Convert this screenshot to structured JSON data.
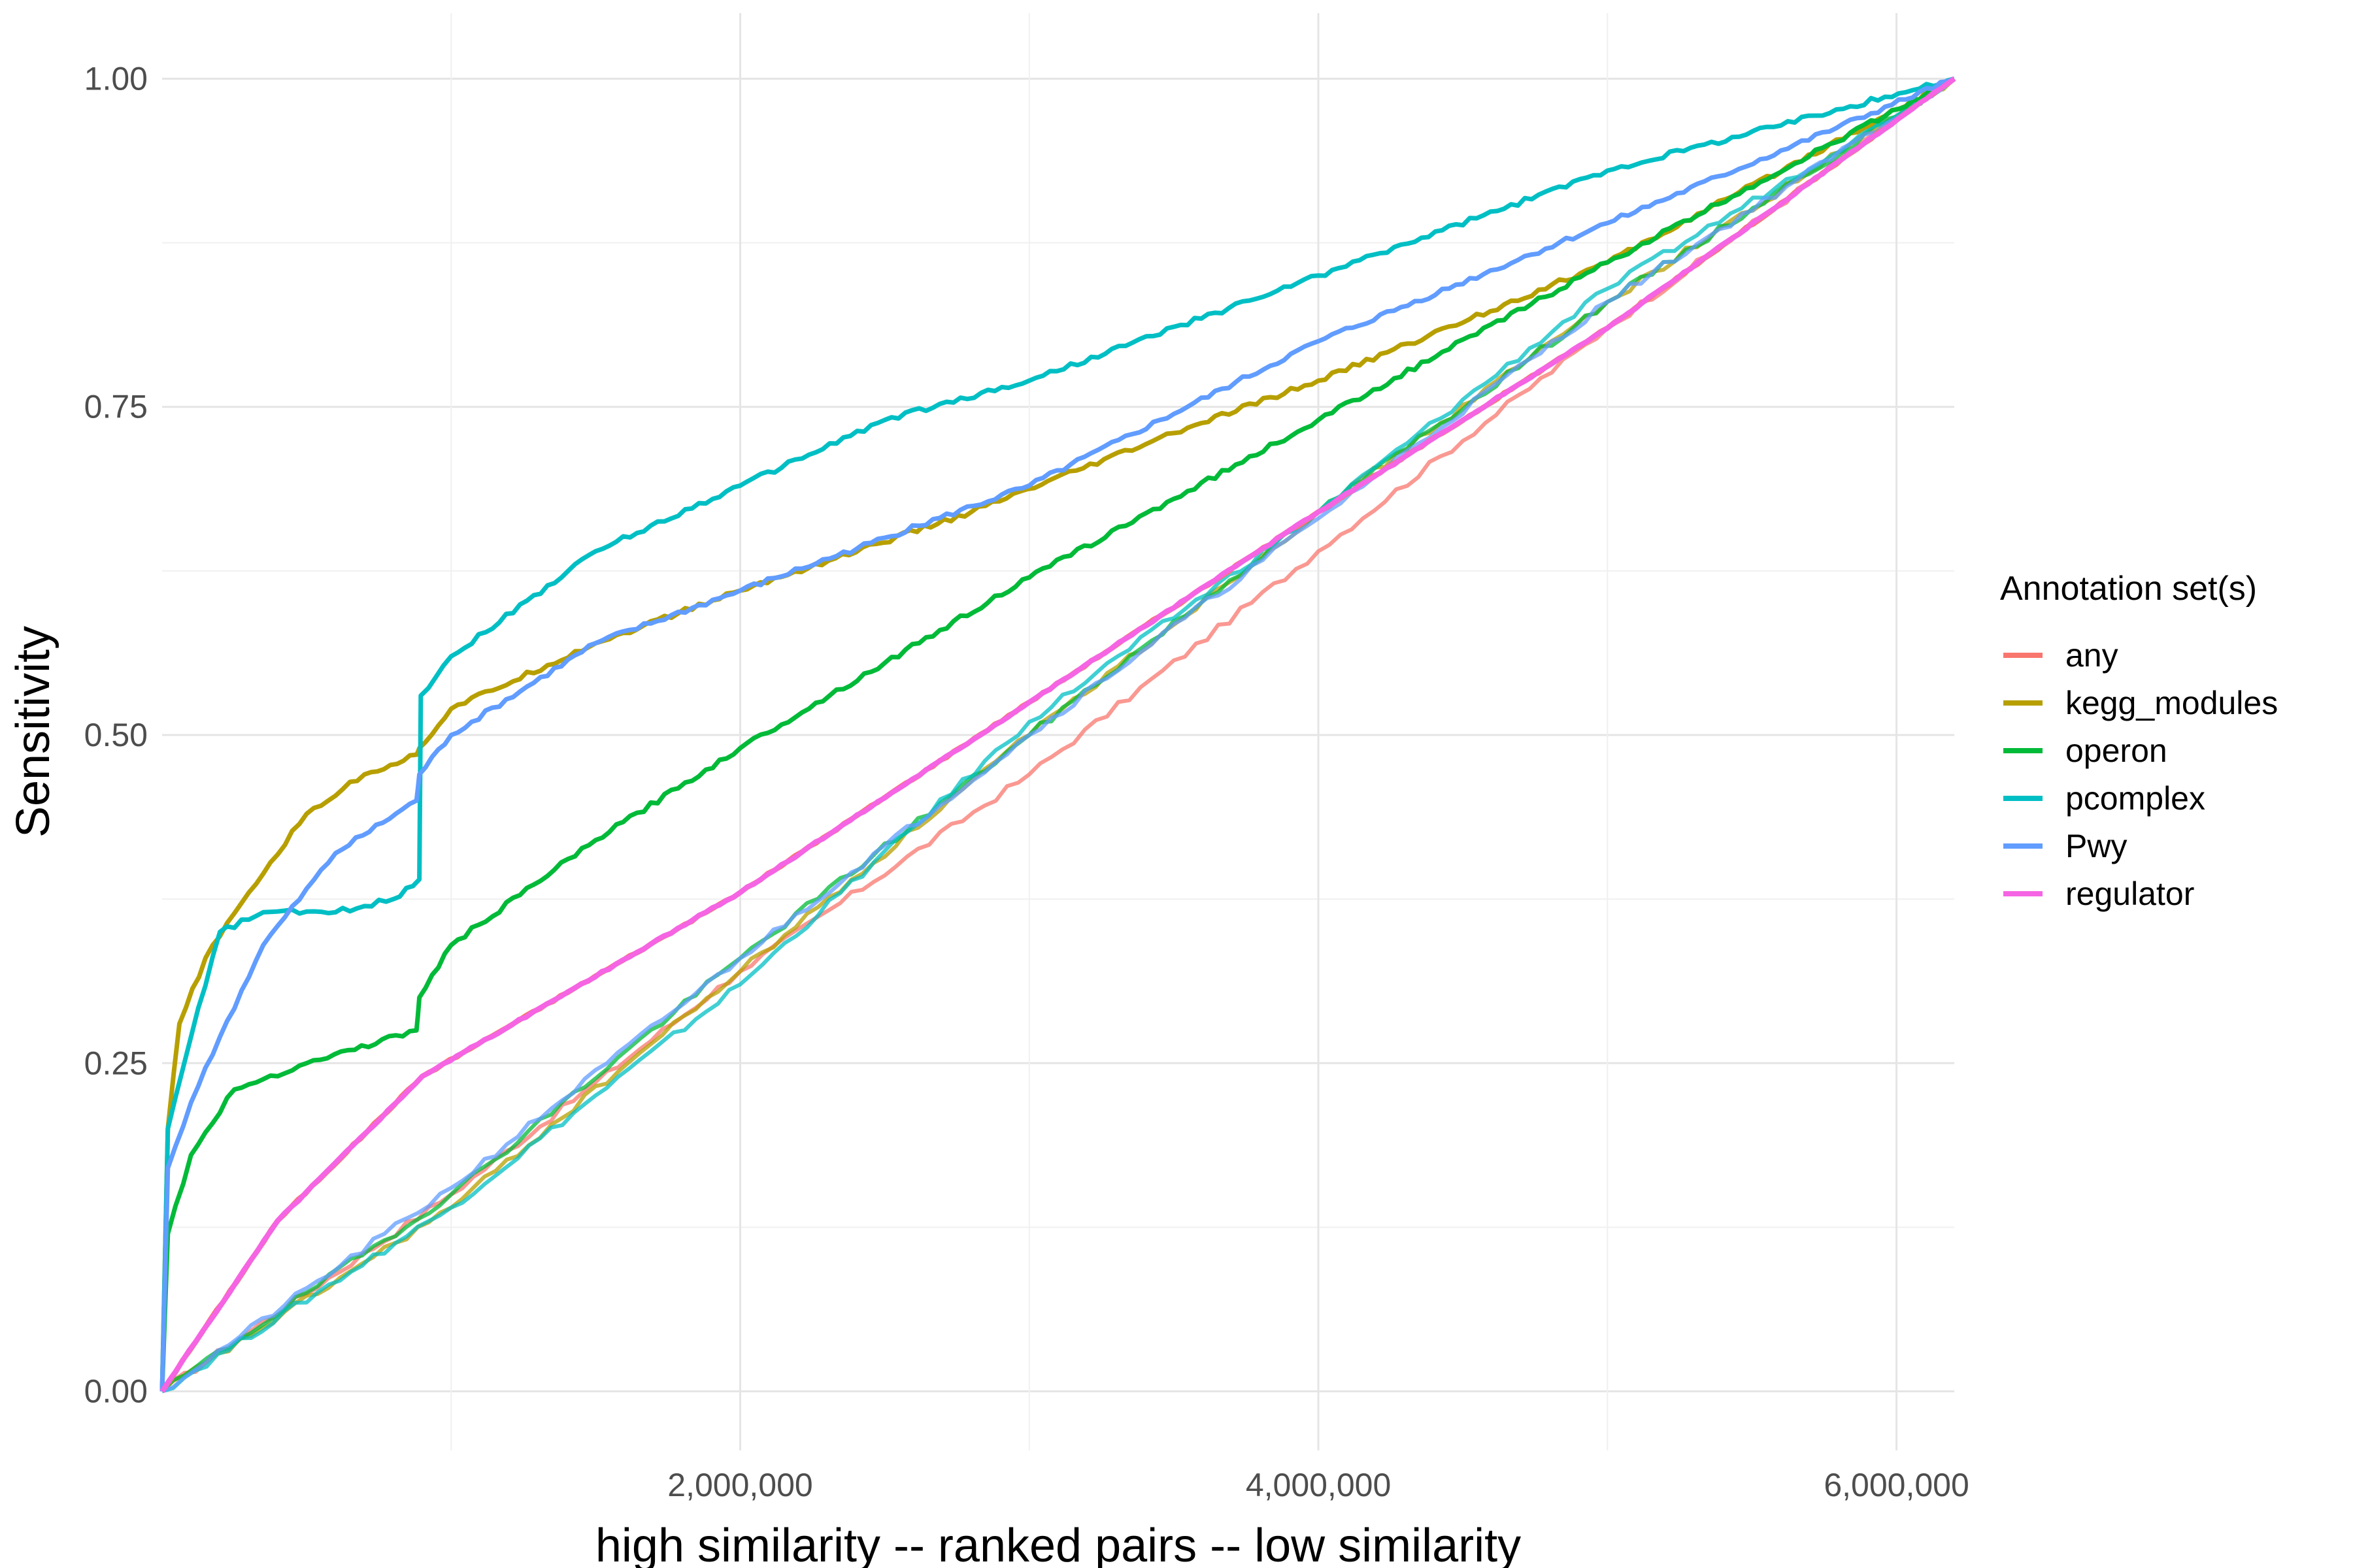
{
  "chart_data": {
    "type": "line",
    "title": "",
    "xlabel": "high similarity -- ranked pairs -- low similarity",
    "ylabel": "Sensitivity",
    "xlim": [
      0,
      6200000
    ],
    "ylim": [
      -0.045,
      1.05
    ],
    "x_ticks": [
      2000000,
      4000000,
      6000000
    ],
    "x_tick_labels": [
      "2,000,000",
      "4,000,000",
      "6,000,000"
    ],
    "y_ticks": [
      0,
      0.25,
      0.5,
      0.75,
      1
    ],
    "y_tick_labels": [
      "0.00",
      "0.25",
      "0.50",
      "0.75",
      "1.00"
    ],
    "grid": true,
    "legend": {
      "title": "Annotation set(s)",
      "position": "right"
    },
    "series": [
      {
        "name": "any",
        "color": "#F8766D",
        "x": [
          0,
          400000,
          900000,
          2000000,
          3000000,
          4000000,
          5000000,
          6200000
        ],
        "y": [
          0,
          0.13,
          0.24,
          0.38,
          0.525,
          0.67,
          0.81,
          1.0
        ]
      },
      {
        "name": "kegg_modules",
        "color": "#B79F00",
        "x": [
          0,
          20000,
          60000,
          150000,
          300000,
          500000,
          700000,
          880000,
          890000,
          1000000,
          1500000,
          2000000,
          2800000,
          3500000,
          4000000,
          5000000,
          6200000
        ],
        "y": [
          0,
          0.2,
          0.28,
          0.33,
          0.38,
          0.44,
          0.47,
          0.485,
          0.49,
          0.52,
          0.57,
          0.61,
          0.67,
          0.73,
          0.77,
          0.86,
          1.0
        ]
      },
      {
        "name": "operon",
        "color": "#00BA38",
        "x": [
          0,
          20000,
          100000,
          250000,
          500000,
          880000,
          890000,
          1000000,
          1500000,
          2000000,
          3000000,
          4000000,
          5000000,
          6200000
        ],
        "y": [
          0,
          0.12,
          0.18,
          0.23,
          0.25,
          0.275,
          0.3,
          0.34,
          0.42,
          0.49,
          0.62,
          0.74,
          0.86,
          1.0
        ]
      },
      {
        "name": "pcomplex",
        "color": "#00BFC4",
        "x": [
          0,
          20000,
          100000,
          200000,
          350000,
          600000,
          800000,
          890000,
          895000,
          1000000,
          1500000,
          2000000,
          2500000,
          3000000,
          4000000,
          5000000,
          6200000
        ],
        "y": [
          0,
          0.2,
          0.27,
          0.35,
          0.365,
          0.365,
          0.375,
          0.39,
          0.53,
          0.56,
          0.64,
          0.69,
          0.74,
          0.77,
          0.85,
          0.93,
          1.0
        ]
      },
      {
        "name": "Pwy",
        "color": "#619CFF",
        "x": [
          0,
          20000,
          100000,
          200000,
          350000,
          600000,
          880000,
          890000,
          1000000,
          1500000,
          2000000,
          3000000,
          4000000,
          5000000,
          6200000
        ],
        "y": [
          0,
          0.17,
          0.22,
          0.27,
          0.34,
          0.41,
          0.45,
          0.47,
          0.5,
          0.57,
          0.61,
          0.69,
          0.8,
          0.89,
          1.0
        ]
      },
      {
        "name": "regulator",
        "color": "#F564E3",
        "x": [
          0,
          400000,
          900000,
          2000000,
          3000000,
          4000000,
          5000000,
          6200000
        ],
        "y": [
          0,
          0.13,
          0.24,
          0.38,
          0.525,
          0.67,
          0.81,
          1.0
        ]
      }
    ],
    "background_series": [
      {
        "color": "#F8766D",
        "x": [
          0,
          1000000,
          2000000,
          3000000,
          4000000,
          5000000,
          6200000
        ],
        "y": [
          0,
          0.15,
          0.32,
          0.47,
          0.64,
          0.81,
          1.0
        ]
      },
      {
        "color": "#B79F00",
        "x": [
          0,
          1000000,
          2000000,
          3000000,
          4000000,
          5000000,
          6200000
        ],
        "y": [
          0,
          0.14,
          0.32,
          0.5,
          0.67,
          0.83,
          1.0
        ]
      },
      {
        "color": "#00BA38",
        "x": [
          0,
          1000000,
          2000000,
          3000000,
          4000000,
          5000000,
          6200000
        ],
        "y": [
          0,
          0.15,
          0.33,
          0.5,
          0.67,
          0.83,
          1.0
        ]
      },
      {
        "color": "#00BFC4",
        "x": [
          0,
          1000000,
          2000000,
          3000000,
          4000000,
          5000000,
          6200000
        ],
        "y": [
          0,
          0.14,
          0.31,
          0.51,
          0.67,
          0.84,
          1.0
        ]
      },
      {
        "color": "#619CFF",
        "x": [
          0,
          1000000,
          2000000,
          3000000,
          4000000,
          5000000,
          6200000
        ],
        "y": [
          0,
          0.155,
          0.33,
          0.5,
          0.665,
          0.83,
          1.0
        ]
      }
    ]
  }
}
